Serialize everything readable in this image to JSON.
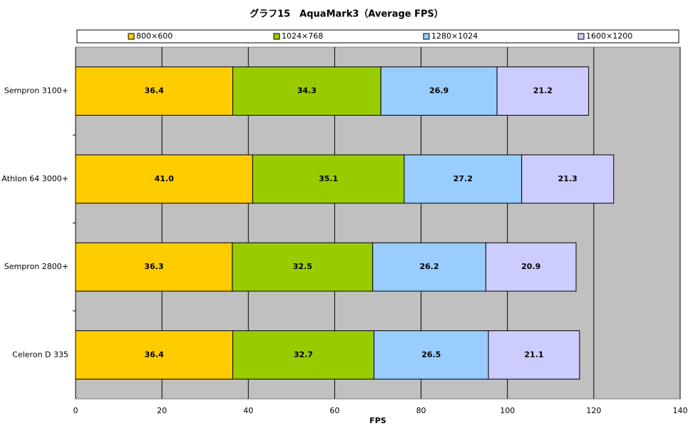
{
  "chart_data": {
    "type": "stacked-barh",
    "title": "グラフ15　AquaMark3（Average FPS）",
    "x_label": "FPS",
    "categories": [
      "Sempron 3100+",
      "Athlon 64 3000+",
      "Sempron 2800+",
      "Celeron D 335"
    ],
    "series": [
      {
        "name": "800×600",
        "color": "#ffcc00",
        "values": [
          36.4,
          41.0,
          36.3,
          36.4
        ],
        "value_labels": [
          "36.4",
          "41.0",
          "36.3",
          "36.4"
        ]
      },
      {
        "name": "1024×768",
        "color": "#99cc00",
        "values": [
          34.3,
          35.1,
          32.5,
          32.7
        ]
      },
      {
        "name": "1280×1024",
        "color": "#99ccff",
        "values": [
          26.9,
          27.2,
          26.2,
          26.5
        ]
      },
      {
        "name": "1600×1200",
        "color": "#ccccff",
        "values": [
          21.2,
          21.3,
          20.9,
          21.1
        ]
      }
    ],
    "xlim": [
      0,
      140
    ],
    "xticks": [
      0,
      20,
      40,
      60,
      80,
      100,
      120,
      140
    ],
    "grid": true,
    "legend": "top",
    "plot_background": "#c0c0c0"
  }
}
